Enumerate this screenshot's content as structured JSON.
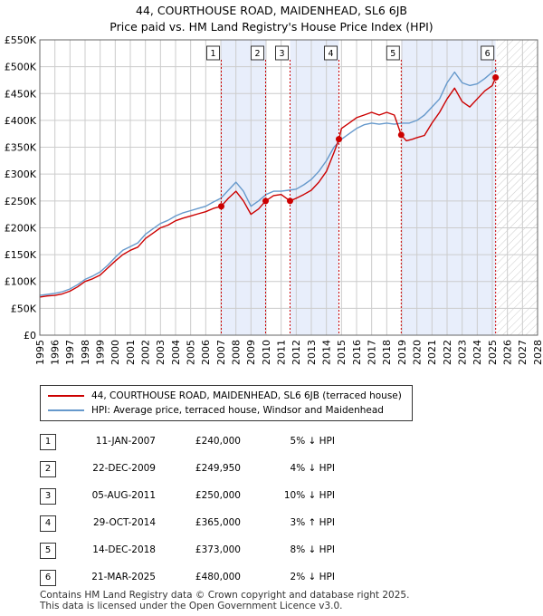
{
  "header": {
    "title": "44, COURTHOUSE ROAD, MAIDENHEAD, SL6 6JB",
    "subtitle": "Price paid vs. HM Land Registry's House Price Index (HPI)"
  },
  "colors": {
    "price_line": "#cc0000",
    "hpi_line": "#6699cc",
    "shade": "#e8eefb",
    "grid": "#cccccc",
    "marker": "#cc0000"
  },
  "chart_data": {
    "type": "line",
    "title": "44, COURTHOUSE ROAD, MAIDENHEAD, SL6 6JB",
    "subtitle": "Price paid vs. HM Land Registry's House Price Index (HPI)",
    "xlabel": "",
    "ylabel": "",
    "xlim": [
      1995,
      2028
    ],
    "ylim": [
      0,
      550000
    ],
    "yticks": [
      0,
      50000,
      100000,
      150000,
      200000,
      250000,
      300000,
      350000,
      400000,
      450000,
      500000,
      550000
    ],
    "ytick_labels": [
      "£0",
      "£50K",
      "£100K",
      "£150K",
      "£200K",
      "£250K",
      "£300K",
      "£350K",
      "£400K",
      "£450K",
      "£500K",
      "£550K"
    ],
    "xticks": [
      1995,
      1996,
      1997,
      1998,
      1999,
      2000,
      2001,
      2002,
      2003,
      2004,
      2005,
      2006,
      2007,
      2008,
      2009,
      2010,
      2011,
      2012,
      2013,
      2014,
      2015,
      2016,
      2017,
      2018,
      2019,
      2020,
      2021,
      2022,
      2023,
      2024,
      2025,
      2026,
      2027,
      2028
    ],
    "grid": true,
    "future_hatch_from": 2025.3,
    "shaded_periods": [
      [
        2007.03,
        2009.97
      ],
      [
        2011.59,
        2014.83
      ],
      [
        2018.96,
        2025.22
      ]
    ],
    "series": [
      {
        "name": "44, COURTHOUSE ROAD, MAIDENHEAD, SL6 6JB (terraced house)",
        "color": "#cc0000",
        "x": [
          1995.0,
          1995.5,
          1996.0,
          1996.5,
          1997.0,
          1997.5,
          1998.0,
          1998.5,
          1999.0,
          1999.5,
          2000.0,
          2000.5,
          2001.0,
          2001.5,
          2002.0,
          2002.5,
          2003.0,
          2003.5,
          2004.0,
          2004.5,
          2005.0,
          2005.5,
          2006.0,
          2006.5,
          2007.03,
          2007.5,
          2008.0,
          2008.5,
          2009.0,
          2009.5,
          2009.97,
          2010.5,
          2011.0,
          2011.59,
          2012.0,
          2012.5,
          2013.0,
          2013.5,
          2014.0,
          2014.5,
          2014.83,
          2015.0,
          2015.5,
          2016.0,
          2016.5,
          2017.0,
          2017.5,
          2018.0,
          2018.5,
          2018.96,
          2019.3,
          2019.7,
          2020.0,
          2020.5,
          2021.0,
          2021.5,
          2022.0,
          2022.5,
          2023.0,
          2023.5,
          2024.0,
          2024.5,
          2025.0,
          2025.22
        ],
        "y": [
          71000,
          73000,
          74000,
          77000,
          82000,
          90000,
          100000,
          105000,
          112000,
          125000,
          138000,
          150000,
          158000,
          164000,
          180000,
          190000,
          200000,
          205000,
          213000,
          218000,
          222000,
          226000,
          230000,
          236000,
          240000,
          255000,
          268000,
          250000,
          225000,
          235000,
          249950,
          260000,
          262000,
          250000,
          255000,
          262000,
          270000,
          285000,
          305000,
          340000,
          365000,
          385000,
          395000,
          405000,
          410000,
          415000,
          410000,
          415000,
          410000,
          373000,
          362000,
          365000,
          368000,
          372000,
          395000,
          415000,
          440000,
          460000,
          435000,
          425000,
          440000,
          455000,
          465000,
          480000
        ],
        "markers": [
          [
            2007.03,
            240000
          ],
          [
            2009.97,
            249950
          ],
          [
            2011.59,
            250000
          ],
          [
            2014.83,
            365000
          ],
          [
            2018.96,
            373000
          ],
          [
            2025.22,
            480000
          ]
        ]
      },
      {
        "name": "HPI: Average price, terraced house, Windsor and Maidenhead",
        "color": "#6699cc",
        "x": [
          1995.0,
          1995.5,
          1996.0,
          1996.5,
          1997.0,
          1997.5,
          1998.0,
          1998.5,
          1999.0,
          1999.5,
          2000.0,
          2000.5,
          2001.0,
          2001.5,
          2002.0,
          2002.5,
          2003.0,
          2003.5,
          2004.0,
          2004.5,
          2005.0,
          2005.5,
          2006.0,
          2006.5,
          2007.0,
          2007.5,
          2008.0,
          2008.5,
          2009.0,
          2009.5,
          2010.0,
          2010.5,
          2011.0,
          2011.5,
          2012.0,
          2012.5,
          2013.0,
          2013.5,
          2014.0,
          2014.5,
          2015.0,
          2015.5,
          2016.0,
          2016.5,
          2017.0,
          2017.5,
          2018.0,
          2018.5,
          2019.0,
          2019.5,
          2020.0,
          2020.5,
          2021.0,
          2021.5,
          2022.0,
          2022.5,
          2023.0,
          2023.5,
          2024.0,
          2024.5,
          2025.0,
          2025.3
        ],
        "y": [
          74000,
          76000,
          78000,
          81000,
          86000,
          94000,
          104000,
          110000,
          118000,
          130000,
          145000,
          158000,
          165000,
          172000,
          188000,
          198000,
          208000,
          214000,
          222000,
          228000,
          232000,
          236000,
          240000,
          248000,
          255000,
          270000,
          285000,
          268000,
          240000,
          250000,
          262000,
          268000,
          268000,
          270000,
          272000,
          280000,
          290000,
          305000,
          325000,
          350000,
          365000,
          375000,
          385000,
          392000,
          395000,
          393000,
          395000,
          393000,
          395000,
          395000,
          400000,
          410000,
          425000,
          440000,
          470000,
          490000,
          470000,
          465000,
          468000,
          478000,
          490000,
          495000
        ]
      }
    ]
  },
  "legend": {
    "property_label": "44, COURTHOUSE ROAD, MAIDENHEAD, SL6 6JB (terraced house)",
    "hpi_label": "HPI: Average price, terraced house, Windsor and Maidenhead"
  },
  "transactions": [
    {
      "num": "1",
      "date": "11-JAN-2007",
      "price": "£240,000",
      "diff": "5% ↓ HPI"
    },
    {
      "num": "2",
      "date": "22-DEC-2009",
      "price": "£249,950",
      "diff": "4% ↓ HPI"
    },
    {
      "num": "3",
      "date": "05-AUG-2011",
      "price": "£250,000",
      "diff": "10% ↓ HPI"
    },
    {
      "num": "4",
      "date": "29-OCT-2014",
      "price": "£365,000",
      "diff": "3% ↑ HPI"
    },
    {
      "num": "5",
      "date": "14-DEC-2018",
      "price": "£373,000",
      "diff": "8% ↓ HPI"
    },
    {
      "num": "6",
      "date": "21-MAR-2025",
      "price": "£480,000",
      "diff": "2% ↓ HPI"
    }
  ],
  "footer": {
    "line1": "Contains HM Land Registry data © Crown copyright and database right 2025.",
    "line2": "This data is licensed under the Open Government Licence v3.0."
  }
}
